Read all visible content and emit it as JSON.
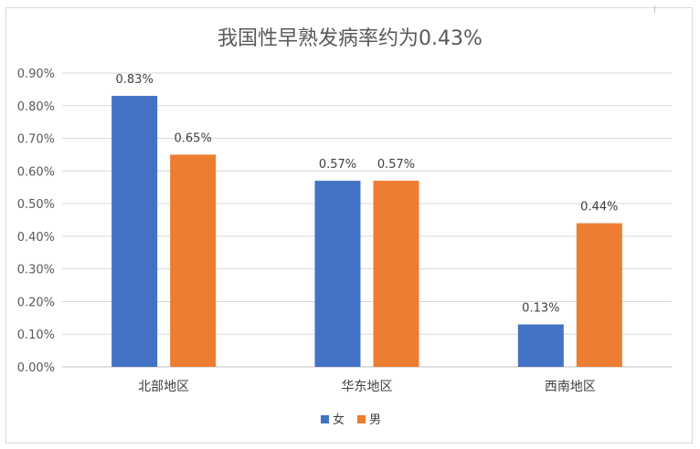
{
  "chart_data": {
    "type": "bar",
    "title": "我国性早熟发病率约为0.43%",
    "categories": [
      "北部地区",
      "华东地区",
      "西南地区"
    ],
    "series": [
      {
        "name": "女",
        "values": [
          0.83,
          0.57,
          0.13
        ],
        "labels": [
          "0.83%",
          "0.57%",
          "0.13%"
        ],
        "color": "#4472C4"
      },
      {
        "name": "男",
        "values": [
          0.65,
          0.57,
          0.44
        ],
        "labels": [
          "0.65%",
          "0.57%",
          "0.44%"
        ],
        "color": "#ED7D31"
      }
    ],
    "ylim": [
      0,
      0.9
    ],
    "yticks": [
      0,
      0.1,
      0.2,
      0.3,
      0.4,
      0.5,
      0.6,
      0.7,
      0.8,
      0.9
    ],
    "ytick_labels": [
      "0.00%",
      "0.10%",
      "0.20%",
      "0.30%",
      "0.40%",
      "0.50%",
      "0.60%",
      "0.70%",
      "0.80%",
      "0.90%"
    ],
    "xlabel": "",
    "ylabel": "",
    "grid": true,
    "legend_position": "bottom"
  }
}
